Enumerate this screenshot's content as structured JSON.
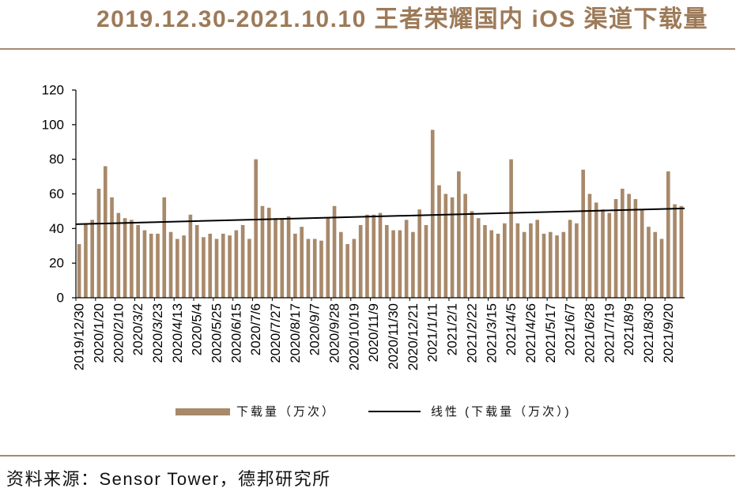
{
  "colors": {
    "title": "#9d7a58",
    "rule": "#a98a6c",
    "bar": "#a8896a",
    "trend_line": "#000000"
  },
  "chart_data": {
    "type": "bar",
    "title": "2019.12.30-2021.10.10 王者荣耀国内 iOS 渠道下载量",
    "x_tick_labels": [
      "2019/12/30",
      "2020/1/20",
      "2020/2/10",
      "2020/3/2",
      "2020/3/23",
      "2020/4/13",
      "2020/5/4",
      "2020/5/25",
      "2020/6/15",
      "2020/7/6",
      "2020/7/27",
      "2020/8/17",
      "2020/9/7",
      "2020/9/28",
      "2020/10/19",
      "2020/11/9",
      "2020/11/30",
      "2020/12/21",
      "2021/1/11",
      "2021/2/1",
      "2021/2/22",
      "2021/3/15",
      "2021/4/5",
      "2021/4/26",
      "2021/5/17",
      "2021/6/7",
      "2021/6/28",
      "2021/7/19",
      "2021/8/9",
      "2021/8/30",
      "2021/9/20"
    ],
    "series": [
      {
        "name": "下载量（万次）",
        "type": "bar",
        "values": [
          31,
          43,
          45,
          63,
          76,
          58,
          49,
          46,
          45,
          42,
          39,
          37,
          37,
          58,
          38,
          34,
          36,
          48,
          42,
          35,
          37,
          34,
          37,
          36,
          39,
          42,
          34,
          80,
          53,
          52,
          46,
          46,
          47,
          37,
          41,
          34,
          34,
          33,
          46,
          53,
          38,
          31,
          34,
          42,
          48,
          48,
          49,
          42,
          39,
          39,
          45,
          38,
          51,
          42,
          97,
          65,
          60,
          58,
          73,
          60,
          50,
          46,
          42,
          39,
          37,
          43,
          80,
          43,
          38,
          43,
          45,
          37,
          38,
          36,
          38,
          45,
          43,
          74,
          60,
          55,
          51,
          49,
          57,
          63,
          60,
          57,
          51,
          41,
          38,
          34,
          73,
          54,
          53
        ]
      },
      {
        "name": "线性 (下载量（万次）)",
        "type": "linear-trendline"
      }
    ],
    "y_ticks": [
      0,
      20,
      40,
      60,
      80,
      100,
      120
    ],
    "ylim": [
      0,
      120
    ],
    "grid": false,
    "legend_position": "bottom"
  },
  "source": "资料来源：Sensor Tower，德邦研究所"
}
